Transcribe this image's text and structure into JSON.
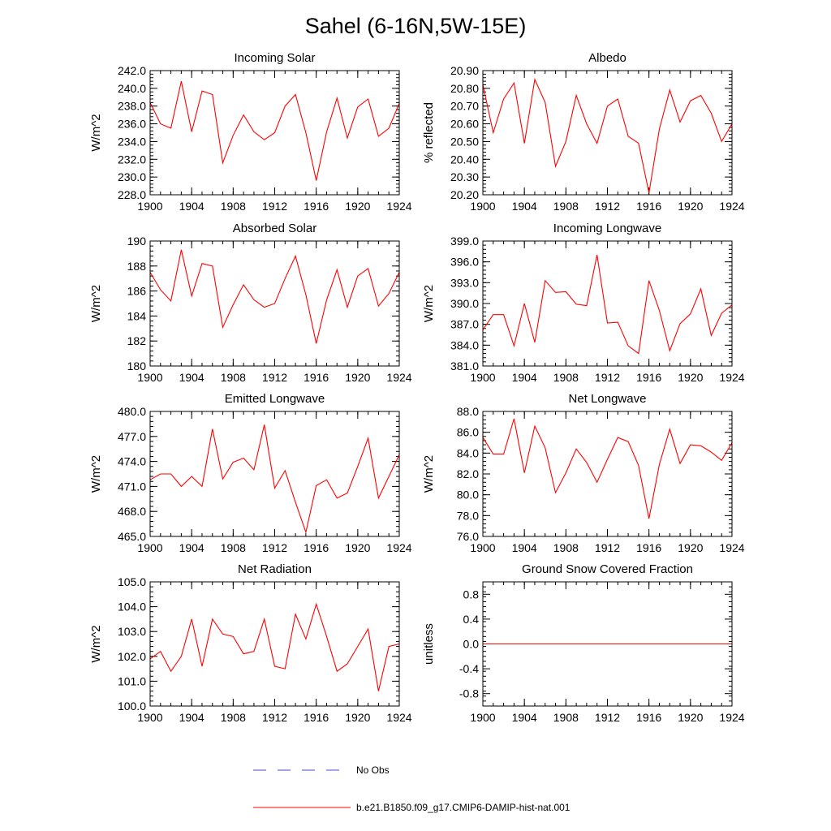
{
  "figure": {
    "title": "Sahel (6-16N,5W-15E)"
  },
  "chart_data": [
    {
      "type": "line",
      "title": "Incoming Solar",
      "ylabel": "W/m^2",
      "xlim": [
        1900,
        1924
      ],
      "ylim": [
        228.0,
        242.0
      ],
      "yticks": [
        228.0,
        230.0,
        232.0,
        234.0,
        236.0,
        238.0,
        240.0,
        242.0
      ],
      "ytick_labels": [
        "228.0",
        "230.0",
        "232.0",
        "234.0",
        "236.0",
        "238.0",
        "240.0",
        "242.0"
      ],
      "x": [
        1900,
        1901,
        1902,
        1903,
        1904,
        1905,
        1906,
        1907,
        1908,
        1909,
        1910,
        1911,
        1912,
        1913,
        1914,
        1915,
        1916,
        1917,
        1918,
        1919,
        1920,
        1921,
        1922,
        1923,
        1924
      ],
      "series": [
        {
          "name": "b.e21.B1850.f09_g17.CMIP6-DAMIP-hist-nat.001",
          "values": [
            238.4,
            236.0,
            235.5,
            240.8,
            235.1,
            239.7,
            239.3,
            231.6,
            234.7,
            237.0,
            235.1,
            234.2,
            235.0,
            238.0,
            239.3,
            235.0,
            229.6,
            235.1,
            238.9,
            234.4,
            237.9,
            238.8,
            234.6,
            235.5,
            238.3
          ]
        }
      ]
    },
    {
      "type": "line",
      "title": "Albedo",
      "ylabel": "% reflected",
      "xlim": [
        1900,
        1924
      ],
      "ylim": [
        20.2,
        20.9
      ],
      "yticks": [
        20.2,
        20.3,
        20.4,
        20.5,
        20.6,
        20.7,
        20.8,
        20.9
      ],
      "ytick_labels": [
        "20.20",
        "20.30",
        "20.40",
        "20.50",
        "20.60",
        "20.70",
        "20.80",
        "20.90"
      ],
      "x": [
        1900,
        1901,
        1902,
        1903,
        1904,
        1905,
        1906,
        1907,
        1908,
        1909,
        1910,
        1911,
        1912,
        1913,
        1914,
        1915,
        1916,
        1917,
        1918,
        1919,
        1920,
        1921,
        1922,
        1923,
        1924
      ],
      "series": [
        {
          "name": "b.e21.B1850.f09_g17.CMIP6-DAMIP-hist-nat.001",
          "values": [
            20.82,
            20.55,
            20.74,
            20.83,
            20.49,
            20.85,
            20.72,
            20.36,
            20.5,
            20.76,
            20.6,
            20.49,
            20.7,
            20.74,
            20.53,
            20.49,
            20.21,
            20.57,
            20.79,
            20.61,
            20.73,
            20.76,
            20.66,
            20.5,
            20.6
          ]
        }
      ]
    },
    {
      "type": "line",
      "title": "Absorbed Solar",
      "ylabel": "W/m^2",
      "xlim": [
        1900,
        1924
      ],
      "ylim": [
        180,
        190
      ],
      "yticks": [
        180,
        182,
        184,
        186,
        188,
        190
      ],
      "ytick_labels": [
        "180",
        "182",
        "184",
        "186",
        "188",
        "190"
      ],
      "x": [
        1900,
        1901,
        1902,
        1903,
        1904,
        1905,
        1906,
        1907,
        1908,
        1909,
        1910,
        1911,
        1912,
        1913,
        1914,
        1915,
        1916,
        1917,
        1918,
        1919,
        1920,
        1921,
        1922,
        1923,
        1924
      ],
      "series": [
        {
          "name": "b.e21.B1850.f09_g17.CMIP6-DAMIP-hist-nat.001",
          "values": [
            187.5,
            186.1,
            185.2,
            189.3,
            185.6,
            188.2,
            188.0,
            183.1,
            184.9,
            186.5,
            185.3,
            184.7,
            185.0,
            187.0,
            188.8,
            185.7,
            181.8,
            185.3,
            187.7,
            184.7,
            187.2,
            187.8,
            184.8,
            185.8,
            187.5
          ]
        }
      ]
    },
    {
      "type": "line",
      "title": "Incoming Longwave",
      "ylabel": "W/m^2",
      "xlim": [
        1900,
        1924
      ],
      "ylim": [
        381.0,
        399.0
      ],
      "yticks": [
        381.0,
        384.0,
        387.0,
        390.0,
        393.0,
        396.0,
        399.0
      ],
      "ytick_labels": [
        "381.0",
        "384.0",
        "387.0",
        "390.0",
        "393.0",
        "396.0",
        "399.0"
      ],
      "x": [
        1900,
        1901,
        1902,
        1903,
        1904,
        1905,
        1906,
        1907,
        1908,
        1909,
        1910,
        1911,
        1912,
        1913,
        1914,
        1915,
        1916,
        1917,
        1918,
        1919,
        1920,
        1921,
        1922,
        1923,
        1924
      ],
      "series": [
        {
          "name": "b.e21.B1850.f09_g17.CMIP6-DAMIP-hist-nat.001",
          "values": [
            386.2,
            388.4,
            388.4,
            383.9,
            390.0,
            384.4,
            393.3,
            391.6,
            391.7,
            389.9,
            389.7,
            397.0,
            387.2,
            387.3,
            383.9,
            382.8,
            393.3,
            389.0,
            383.2,
            387.1,
            388.5,
            392.1,
            385.4,
            388.6,
            389.8
          ]
        }
      ]
    },
    {
      "type": "line",
      "title": "Emitted Longwave",
      "ylabel": "W/m^2",
      "xlim": [
        1900,
        1924
      ],
      "ylim": [
        465.0,
        480.0
      ],
      "yticks": [
        465.0,
        468.0,
        471.0,
        474.0,
        477.0,
        480.0
      ],
      "ytick_labels": [
        "465.0",
        "468.0",
        "471.0",
        "474.0",
        "477.0",
        "480.0"
      ],
      "x": [
        1900,
        1901,
        1902,
        1903,
        1904,
        1905,
        1906,
        1907,
        1908,
        1909,
        1910,
        1911,
        1912,
        1913,
        1914,
        1915,
        1916,
        1917,
        1918,
        1919,
        1920,
        1921,
        1922,
        1923,
        1924
      ],
      "series": [
        {
          "name": "b.e21.B1850.f09_g17.CMIP6-DAMIP-hist-nat.001",
          "values": [
            471.8,
            472.5,
            472.5,
            471.0,
            472.2,
            471.0,
            477.9,
            471.9,
            473.9,
            474.4,
            473.0,
            478.4,
            470.8,
            472.9,
            469.1,
            465.5,
            471.1,
            471.8,
            469.6,
            470.2,
            473.4,
            476.8,
            469.6,
            472.2,
            474.8
          ]
        }
      ]
    },
    {
      "type": "line",
      "title": "Net Longwave",
      "ylabel": "W/m^2",
      "xlim": [
        1900,
        1924
      ],
      "ylim": [
        76.0,
        88.0
      ],
      "yticks": [
        76.0,
        78.0,
        80.0,
        82.0,
        84.0,
        86.0,
        88.0
      ],
      "ytick_labels": [
        "76.0",
        "78.0",
        "80.0",
        "82.0",
        "84.0",
        "86.0",
        "88.0"
      ],
      "x": [
        1900,
        1901,
        1902,
        1903,
        1904,
        1905,
        1906,
        1907,
        1908,
        1909,
        1910,
        1911,
        1912,
        1913,
        1914,
        1915,
        1916,
        1917,
        1918,
        1919,
        1920,
        1921,
        1922,
        1923,
        1924
      ],
      "series": [
        {
          "name": "b.e21.B1850.f09_g17.CMIP6-DAMIP-hist-nat.001",
          "values": [
            85.5,
            83.9,
            83.9,
            87.3,
            82.1,
            86.6,
            84.5,
            80.2,
            82.1,
            84.4,
            83.1,
            81.2,
            83.4,
            85.5,
            85.1,
            82.8,
            77.7,
            82.9,
            86.3,
            83.0,
            84.8,
            84.7,
            84.1,
            83.3,
            85.0
          ]
        }
      ]
    },
    {
      "type": "line",
      "title": "Net Radiation",
      "ylabel": "W/m^2",
      "xlim": [
        1900,
        1924
      ],
      "ylim": [
        100.0,
        105.0
      ],
      "yticks": [
        100.0,
        101.0,
        102.0,
        103.0,
        104.0,
        105.0
      ],
      "ytick_labels": [
        "100.0",
        "101.0",
        "102.0",
        "103.0",
        "104.0",
        "105.0"
      ],
      "x": [
        1900,
        1901,
        1902,
        1903,
        1904,
        1905,
        1906,
        1907,
        1908,
        1909,
        1910,
        1911,
        1912,
        1913,
        1914,
        1915,
        1916,
        1917,
        1918,
        1919,
        1920,
        1921,
        1922,
        1923,
        1924
      ],
      "series": [
        {
          "name": "b.e21.B1850.f09_g17.CMIP6-DAMIP-hist-nat.001",
          "values": [
            101.9,
            102.2,
            101.4,
            102.0,
            103.5,
            101.6,
            103.5,
            102.9,
            102.8,
            102.1,
            102.2,
            103.5,
            101.6,
            101.5,
            103.7,
            102.7,
            104.1,
            102.8,
            101.4,
            101.7,
            102.4,
            103.1,
            100.6,
            102.4,
            102.5
          ]
        }
      ]
    },
    {
      "type": "line",
      "title": "Ground Snow Covered Fraction",
      "ylabel": "unitless",
      "xlim": [
        1900,
        1924
      ],
      "ylim": [
        -1.0,
        1.0
      ],
      "yticks": [
        -0.8,
        -0.4,
        0.0,
        0.4,
        0.8
      ],
      "ytick_labels": [
        "-0.8",
        "-0.4",
        "0.0",
        "0.4",
        "0.8"
      ],
      "x": [
        1900,
        1901,
        1902,
        1903,
        1904,
        1905,
        1906,
        1907,
        1908,
        1909,
        1910,
        1911,
        1912,
        1913,
        1914,
        1915,
        1916,
        1917,
        1918,
        1919,
        1920,
        1921,
        1922,
        1923,
        1924
      ],
      "series": [
        {
          "name": "b.e21.B1850.f09_g17.CMIP6-DAMIP-hist-nat.001",
          "values": [
            0,
            0,
            0,
            0,
            0,
            0,
            0,
            0,
            0,
            0,
            0,
            0,
            0,
            0,
            0,
            0,
            0,
            0,
            0,
            0,
            0,
            0,
            0,
            0,
            0
          ]
        }
      ]
    }
  ],
  "xticks": [
    1900,
    1904,
    1908,
    1912,
    1916,
    1920,
    1924
  ],
  "xtick_labels": [
    "1900",
    "1904",
    "1908",
    "1912",
    "1916",
    "1920",
    "1924"
  ],
  "legend": {
    "placement": "bottom-center",
    "entries": [
      {
        "label": "No Obs",
        "color": "#4a4ad8",
        "style": "dashed"
      },
      {
        "label": "b.e21.B1850.f09_g17.CMIP6-DAMIP-hist-nat.001",
        "color": "#ff0000",
        "style": "solid"
      }
    ]
  },
  "colors": {
    "series": "#ff0000",
    "axes": "#000000"
  }
}
